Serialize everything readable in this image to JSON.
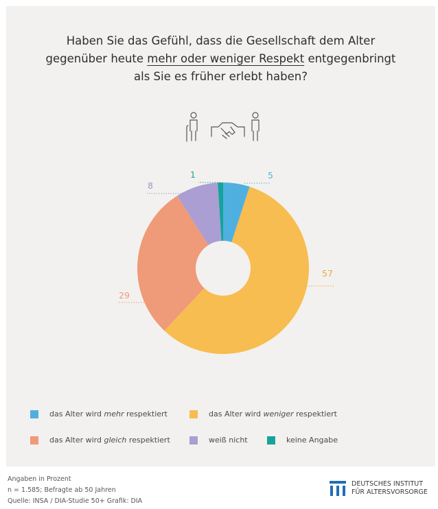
{
  "title": {
    "line1": "Haben Sie das Gefühl, dass die Gesellschaft dem Alter",
    "line2_pre": "gegenüber heute ",
    "line2_ul": "mehr oder weniger Respekt",
    "line2_post": " entgegenbringt",
    "line3": "als Sie es früher erlebt haben?"
  },
  "icon": "elderly-handshake-young-icon",
  "chart_data": {
    "type": "pie",
    "subtype": "donut",
    "unit": "Angaben in Prozent",
    "categories": [
      "das Alter wird mehr respektiert",
      "das Alter wird weniger respektiert",
      "das Alter wird gleich respektiert",
      "weiß nicht",
      "keine Angabe"
    ],
    "values": [
      5,
      57,
      29,
      8,
      1
    ],
    "colors": [
      "#4fb0e0",
      "#f8bd50",
      "#ef9a78",
      "#ab9ed2",
      "#16a39a"
    ],
    "label_colors": [
      "#4fb0e0",
      "#e8a83e",
      "#ef9a78",
      "#9f93c9",
      "#16a39a"
    ]
  },
  "legend": {
    "mehr": {
      "pre": "das Alter wird ",
      "em": "mehr",
      "post": " respektiert"
    },
    "weniger": {
      "pre": "das Alter wird ",
      "em": "weniger",
      "post": " respektiert"
    },
    "gleich": {
      "pre": "das Alter wird ",
      "em": "gleich",
      "post": " respektiert"
    },
    "weiss": "weiß nicht",
    "keine": "keine Angabe"
  },
  "footer": {
    "line1": "Angaben in Prozent",
    "line2": "n = 1.585; Befragte ab 50 Jahren",
    "line3": "Quelle: INSA / DIA-Studie 50+  Grafik: DIA"
  },
  "logo": {
    "line1": "DEUTSCHES INSTITUT",
    "line2": "FÜR ALTERSVORSORGE",
    "color": "#1f6eb5"
  }
}
